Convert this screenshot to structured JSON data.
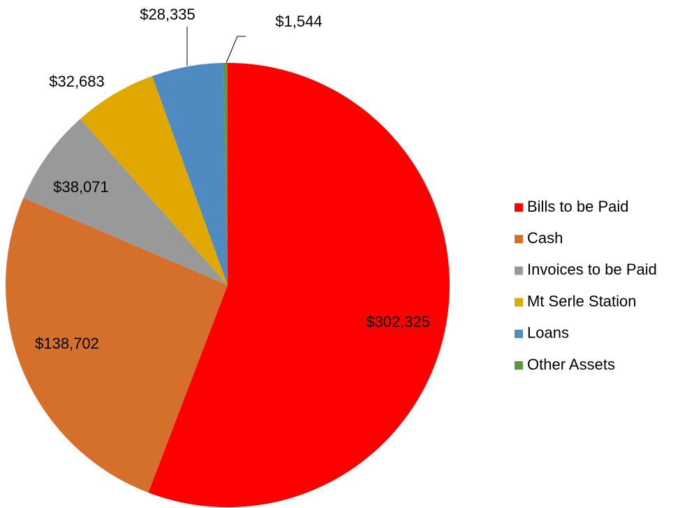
{
  "chart_data": {
    "type": "pie",
    "categories": [
      "Bills to be Paid",
      "Cash",
      "Invoices to be Paid",
      "Mt Serle Station",
      "Loans",
      "Other Assets"
    ],
    "values": [
      302325,
      138702,
      38071,
      32683,
      28335,
      1544
    ],
    "value_labels": [
      "$302,325",
      "$138,702",
      "$38,071",
      "$32,683",
      "$28,335",
      "$1,544"
    ],
    "colors": [
      "#ff0000",
      "#d4702c",
      "#999999",
      "#e0a800",
      "#4f8bc0",
      "#5b9a3b"
    ],
    "legend": "right"
  }
}
